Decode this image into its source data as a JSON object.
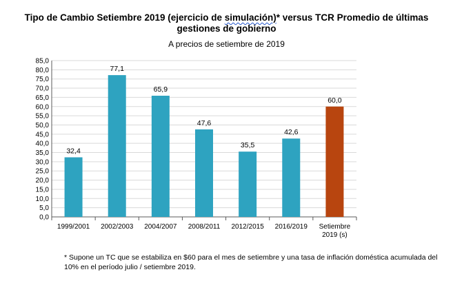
{
  "header": {
    "title_part1": "Tipo de Cambio Setiembre 2019 (ejercicio de ",
    "title_squiggle": "simulación)",
    "title_part2": "* versus TCR Promedio de últimas",
    "title_line2": "gestiones de gobierno",
    "subtitle": "A precios de setiembre de 2019"
  },
  "footnote": "* Supone un TC que se estabiliza en $60 para el mes de setiembre y una tasa de inflación doméstica acumulada del 10% en el período julio / setiembre 2019.",
  "colors": {
    "bar": "#2ea3c0",
    "highlight": "#b8450f",
    "grid": "#d9d9d9",
    "axis": "#595959"
  },
  "chart_data": {
    "type": "bar",
    "categories": [
      "1999/2001",
      "2002/2003",
      "2004/2007",
      "2008/2011",
      "2012/2015",
      "2016/2019",
      "Setiembre 2019 (s)"
    ],
    "category_lines": [
      [
        "1999/2001"
      ],
      [
        "2002/2003"
      ],
      [
        "2004/2007"
      ],
      [
        "2008/2011"
      ],
      [
        "2012/2015"
      ],
      [
        "2016/2019"
      ],
      [
        "Setiembre",
        "2019 (s)"
      ]
    ],
    "values": [
      32.4,
      77.1,
      65.9,
      47.6,
      35.5,
      42.6,
      60.0
    ],
    "value_labels": [
      "32,4",
      "77,1",
      "65,9",
      "47,6",
      "35,5",
      "42,6",
      "60,0"
    ],
    "highlight_index": 6,
    "ylim": [
      0,
      85
    ],
    "yticks": [
      0,
      5,
      10,
      15,
      20,
      25,
      30,
      35,
      40,
      45,
      50,
      55,
      60,
      65,
      70,
      75,
      80,
      85
    ],
    "ytick_labels": [
      "0,0",
      "5,0",
      "10,0",
      "15,0",
      "20,0",
      "25,0",
      "30,0",
      "35,0",
      "40,0",
      "45,0",
      "50,0",
      "55,0",
      "60,0",
      "65,0",
      "70,0",
      "75,0",
      "80,0",
      "85,0"
    ],
    "grid": true,
    "title": "",
    "xlabel": "",
    "ylabel": ""
  }
}
